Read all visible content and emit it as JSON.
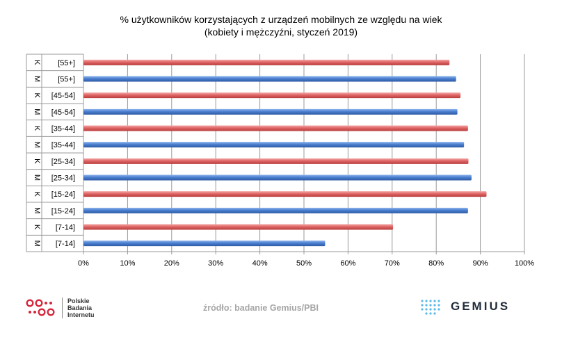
{
  "title_line1": "% użytkowników korzystających z urządzeń mobilnych ze względu na wiek",
  "title_line2": "(kobiety i mężczyźni, styczeń 2019)",
  "source": "źródło: badanie Gemius/PBI",
  "pbi": {
    "line1": "Polskie",
    "line2": "Badania",
    "line3": "Internetu"
  },
  "gemius": {
    "name": "GEMIUS"
  },
  "colors": {
    "female": "#e06666",
    "male": "#4a7fd0"
  },
  "chart_data": {
    "type": "bar",
    "orientation": "horizontal",
    "title": "% użytkowników korzystających z urządzeń mobilnych ze względu na wiek",
    "subtitle": "(kobiety i mężczyźni, styczeń 2019)",
    "xlim": [
      0,
      100
    ],
    "xticks": [
      "0%",
      "10%",
      "20%",
      "30%",
      "40%",
      "50%",
      "60%",
      "70%",
      "80%",
      "90%",
      "100%"
    ],
    "grid": true,
    "rows": [
      {
        "sex": "K",
        "age": "[55+]",
        "value": 83,
        "series": "female"
      },
      {
        "sex": "M",
        "age": "[55+]",
        "value": 84.5,
        "series": "male"
      },
      {
        "sex": "K",
        "age": "[45-54]",
        "value": 85.5,
        "series": "female"
      },
      {
        "sex": "M",
        "age": "[45-54]",
        "value": 84.8,
        "series": "male"
      },
      {
        "sex": "K",
        "age": "[35-44]",
        "value": 87.2,
        "series": "female"
      },
      {
        "sex": "M",
        "age": "[35-44]",
        "value": 86.3,
        "series": "male"
      },
      {
        "sex": "K",
        "age": "[25-34]",
        "value": 87.3,
        "series": "female"
      },
      {
        "sex": "M",
        "age": "[25-34]",
        "value": 88,
        "series": "male"
      },
      {
        "sex": "K",
        "age": "[15-24]",
        "value": 91.4,
        "series": "female"
      },
      {
        "sex": "M",
        "age": "[15-24]",
        "value": 87.2,
        "series": "male"
      },
      {
        "sex": "K",
        "age": "[7-14]",
        "value": 70.2,
        "series": "female"
      },
      {
        "sex": "M",
        "age": "[7-14]",
        "value": 54.8,
        "series": "male"
      }
    ]
  }
}
